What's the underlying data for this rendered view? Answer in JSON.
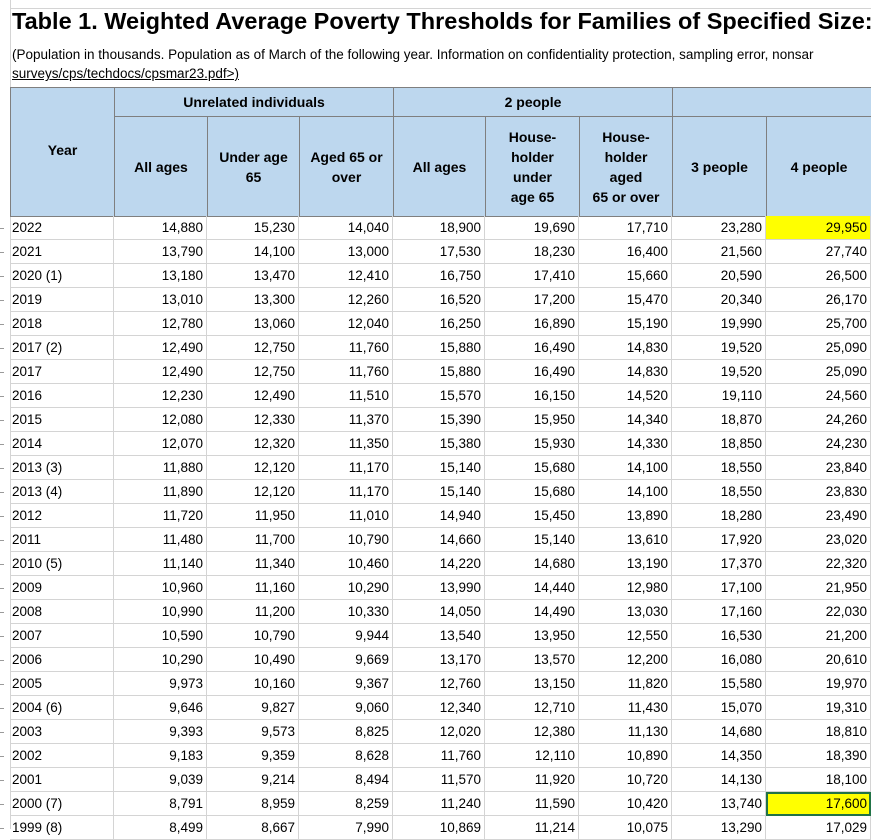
{
  "sheet": {
    "title": "Table 1. Weighted Average Poverty Thresholds for Families of Specified Size:",
    "note_line1": "(Population in thousands. Population as of March of the following year. Information on confidentiality protection, sampling error, nonsar",
    "note_line2": "surveys/cps/techdocs/cpsmar23.pdf>)"
  },
  "header": {
    "year": "Year",
    "group_unrelated": "Unrelated individuals",
    "group_two": "2 people",
    "all_ages_1": "All ages",
    "under_65": "Under age 65",
    "aged_65": "Aged 65 or over",
    "all_ages_2": "All ages",
    "hh_under": "House-\nholder\nunder\nage 65",
    "hh_aged": "House-\nholder\naged\n65 or over",
    "three": "3 people",
    "four": "4 people"
  },
  "rows": [
    {
      "year": "2022",
      "v": [
        "14,880",
        "15,230",
        "14,040",
        "18,900",
        "19,690",
        "17,710",
        "23,280",
        "29,950"
      ]
    },
    {
      "year": "2021",
      "v": [
        "13,790",
        "14,100",
        "13,000",
        "17,530",
        "18,230",
        "16,400",
        "21,560",
        "27,740"
      ]
    },
    {
      "year": "2020 (1)",
      "v": [
        "13,180",
        "13,470",
        "12,410",
        "16,750",
        "17,410",
        "15,660",
        "20,590",
        "26,500"
      ]
    },
    {
      "year": "2019",
      "v": [
        "13,010",
        "13,300",
        "12,260",
        "16,520",
        "17,200",
        "15,470",
        "20,340",
        "26,170"
      ]
    },
    {
      "year": "2018",
      "v": [
        "12,780",
        "13,060",
        "12,040",
        "16,250",
        "16,890",
        "15,190",
        "19,990",
        "25,700"
      ]
    },
    {
      "year": "2017 (2)",
      "v": [
        "12,490",
        "12,750",
        "11,760",
        "15,880",
        "16,490",
        "14,830",
        "19,520",
        "25,090"
      ]
    },
    {
      "year": "2017",
      "v": [
        "12,490",
        "12,750",
        "11,760",
        "15,880",
        "16,490",
        "14,830",
        "19,520",
        "25,090"
      ]
    },
    {
      "year": "2016",
      "v": [
        "12,230",
        "12,490",
        "11,510",
        "15,570",
        "16,150",
        "14,520",
        "19,110",
        "24,560"
      ]
    },
    {
      "year": "2015",
      "v": [
        "12,080",
        "12,330",
        "11,370",
        "15,390",
        "15,950",
        "14,340",
        "18,870",
        "24,260"
      ]
    },
    {
      "year": "2014",
      "v": [
        "12,070",
        "12,320",
        "11,350",
        "15,380",
        "15,930",
        "14,330",
        "18,850",
        "24,230"
      ]
    },
    {
      "year": "2013 (3)",
      "v": [
        "11,880",
        "12,120",
        "11,170",
        "15,140",
        "15,680",
        "14,100",
        "18,550",
        "23,840"
      ]
    },
    {
      "year": "2013 (4)",
      "v": [
        "11,890",
        "12,120",
        "11,170",
        "15,140",
        "15,680",
        "14,100",
        "18,550",
        "23,830"
      ]
    },
    {
      "year": "2012",
      "v": [
        "11,720",
        "11,950",
        "11,010",
        "14,940",
        "15,450",
        "13,890",
        "18,280",
        "23,490"
      ]
    },
    {
      "year": "2011",
      "v": [
        "11,480",
        "11,700",
        "10,790",
        "14,660",
        "15,140",
        "13,610",
        "17,920",
        "23,020"
      ]
    },
    {
      "year": "2010 (5)",
      "v": [
        "11,140",
        "11,340",
        "10,460",
        "14,220",
        "14,680",
        "13,190",
        "17,370",
        "22,320"
      ]
    },
    {
      "year": "2009",
      "v": [
        "10,960",
        "11,160",
        "10,290",
        "13,990",
        "14,440",
        "12,980",
        "17,100",
        "21,950"
      ]
    },
    {
      "year": "2008",
      "v": [
        "10,990",
        "11,200",
        "10,330",
        "14,050",
        "14,490",
        "13,030",
        "17,160",
        "22,030"
      ]
    },
    {
      "year": "2007",
      "v": [
        "10,590",
        "10,790",
        "9,944",
        "13,540",
        "13,950",
        "12,550",
        "16,530",
        "21,200"
      ]
    },
    {
      "year": "2006",
      "v": [
        "10,290",
        "10,490",
        "9,669",
        "13,170",
        "13,570",
        "12,200",
        "16,080",
        "20,610"
      ]
    },
    {
      "year": "2005",
      "v": [
        "9,973",
        "10,160",
        "9,367",
        "12,760",
        "13,150",
        "11,820",
        "15,580",
        "19,970"
      ]
    },
    {
      "year": "2004 (6)",
      "v": [
        "9,646",
        "9,827",
        "9,060",
        "12,340",
        "12,710",
        "11,430",
        "15,070",
        "19,310"
      ]
    },
    {
      "year": "2003",
      "v": [
        "9,393",
        "9,573",
        "8,825",
        "12,020",
        "12,380",
        "11,130",
        "14,680",
        "18,810"
      ]
    },
    {
      "year": "2002",
      "v": [
        "9,183",
        "9,359",
        "8,628",
        "11,760",
        "12,110",
        "10,890",
        "14,350",
        "18,390"
      ]
    },
    {
      "year": "2001",
      "v": [
        "9,039",
        "9,214",
        "8,494",
        "11,570",
        "11,920",
        "10,720",
        "14,130",
        "18,100"
      ]
    },
    {
      "year": "2000 (7)",
      "v": [
        "8,791",
        "8,959",
        "8,259",
        "11,240",
        "11,590",
        "10,420",
        "13,740",
        "17,600"
      ]
    },
    {
      "year": "1999 (8)",
      "v": [
        "8,499",
        "8,667",
        "7,990",
        "10,869",
        "11,214",
        "10,075",
        "13,290",
        "17,029"
      ]
    }
  ],
  "highlight": {
    "color": "#ffff00",
    "cells": [
      {
        "row": 0,
        "col": 7
      },
      {
        "row": 24,
        "col": 7
      }
    ]
  }
}
